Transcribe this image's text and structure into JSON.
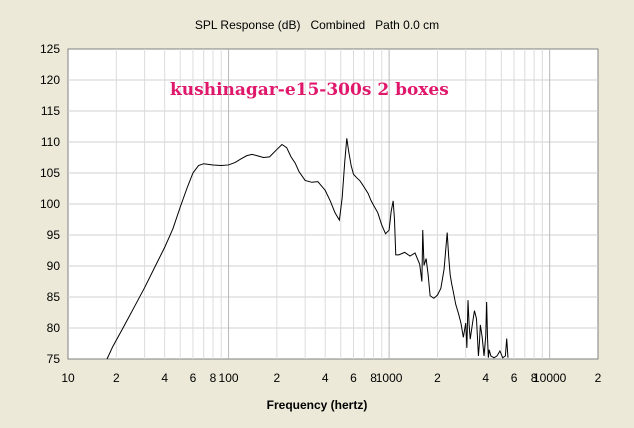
{
  "chart_data": {
    "type": "line",
    "title": "SPL Response (dB)   Combined   Path 0.0 cm",
    "annotation": "kushinagar-e15-300s 2 boxes",
    "xlabel": "Frequency (hertz)",
    "ylabel": "",
    "xscale": "log",
    "xlim": [
      10,
      20000
    ],
    "ylim": [
      75,
      125
    ],
    "grid": true,
    "y_ticks": [
      75,
      80,
      85,
      90,
      95,
      100,
      105,
      110,
      115,
      120,
      125
    ],
    "x_tick_labels": [
      {
        "value": 10,
        "label": "10"
      },
      {
        "value": 20,
        "label": "2"
      },
      {
        "value": 40,
        "label": "4"
      },
      {
        "value": 60,
        "label": "6"
      },
      {
        "value": 80,
        "label": "8"
      },
      {
        "value": 100,
        "label": "100"
      },
      {
        "value": 200,
        "label": "2"
      },
      {
        "value": 400,
        "label": "4"
      },
      {
        "value": 600,
        "label": "6"
      },
      {
        "value": 800,
        "label": "8"
      },
      {
        "value": 1000,
        "label": "1000"
      },
      {
        "value": 2000,
        "label": "2"
      },
      {
        "value": 4000,
        "label": "4"
      },
      {
        "value": 6000,
        "label": "6"
      },
      {
        "value": 8000,
        "label": "8"
      },
      {
        "value": 10000,
        "label": "10000"
      },
      {
        "value": 20000,
        "label": "2"
      }
    ],
    "series": [
      {
        "color": "#000000",
        "x": [
          17.5,
          19,
          22,
          26,
          30,
          35,
          40,
          45,
          50,
          55,
          60,
          65,
          70,
          80,
          90,
          100,
          110,
          120,
          130,
          140,
          150,
          165,
          180,
          200,
          215,
          230,
          245,
          260,
          275,
          300,
          330,
          360,
          400,
          430,
          460,
          490,
          510,
          530,
          545,
          560,
          580,
          600,
          630,
          660,
          700,
          740,
          770,
          800,
          850,
          900,
          950,
          1000,
          1030,
          1060,
          1080,
          1100,
          1150,
          1250,
          1350,
          1450,
          1550,
          1600,
          1620,
          1650,
          1700,
          1750,
          1800,
          1900,
          2000,
          2100,
          2200,
          2300,
          2350,
          2400,
          2450,
          2500,
          2600,
          2700,
          2800,
          2900,
          3000,
          3050,
          3100,
          3150,
          3200,
          3300,
          3400,
          3500,
          3600,
          3650,
          3700,
          3800,
          3900,
          4000,
          4050,
          4100,
          4150,
          4200,
          4300,
          4500,
          4700,
          4900,
          5100,
          5300,
          5400,
          5500
        ],
        "y": [
          75,
          77,
          80,
          83.5,
          86.5,
          90,
          93,
          96,
          99.5,
          102.5,
          105,
          106.2,
          106.5,
          106.3,
          106.2,
          106.3,
          106.7,
          107.3,
          107.8,
          108,
          107.8,
          107.5,
          107.6,
          108.8,
          109.6,
          109.1,
          107.6,
          106.6,
          105.2,
          103.8,
          103.5,
          103.6,
          102.2,
          100.5,
          98.6,
          97.4,
          101,
          107,
          110.6,
          108.5,
          106.2,
          104.8,
          104.2,
          103.7,
          102.7,
          101.7,
          100.6,
          99.8,
          98.6,
          96.6,
          95.2,
          95.8,
          98.8,
          100.5,
          97.5,
          91.8,
          91.8,
          92.2,
          91.6,
          92.1,
          90.3,
          87.5,
          95.8,
          90.1,
          91.2,
          88.6,
          85.2,
          84.8,
          85.3,
          86.4,
          89.5,
          95.4,
          91.5,
          88.6,
          87.2,
          86.1,
          83.8,
          82.4,
          80.8,
          78.5,
          80.8,
          76.8,
          84.5,
          80.5,
          78.2,
          80.6,
          82.8,
          81.5,
          75.5,
          77.5,
          80.5,
          78.5,
          75.5,
          78.8,
          84.2,
          78.5,
          75.2,
          76.5,
          75.5,
          75.2,
          75.5,
          76.3,
          75.2,
          75.5,
          78.3,
          75.2
        ]
      }
    ]
  }
}
